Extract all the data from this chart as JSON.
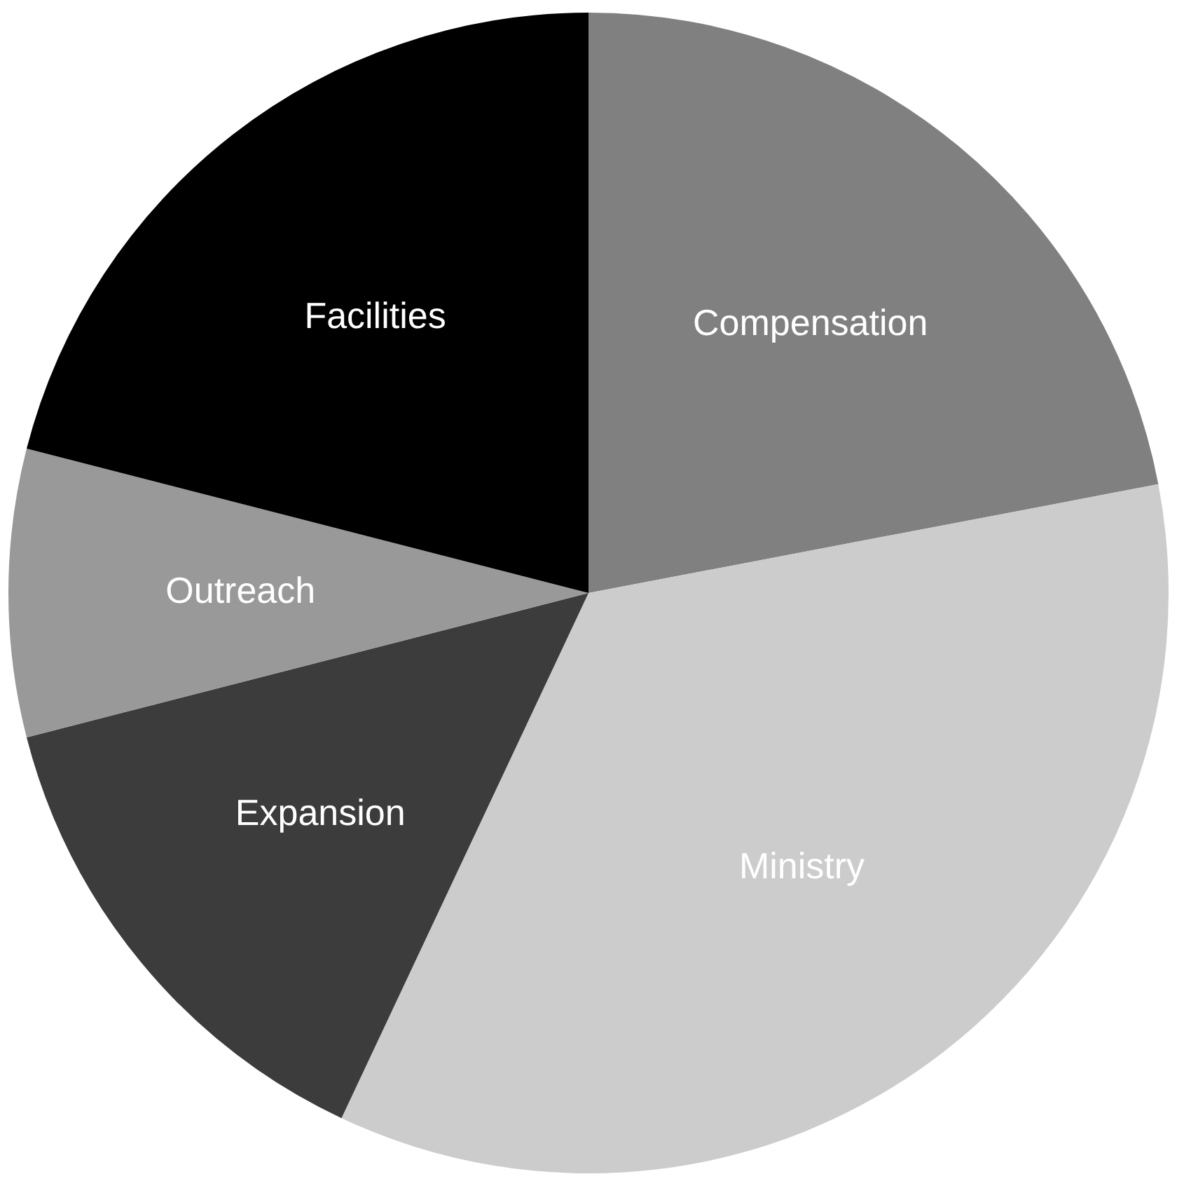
{
  "chart_data": {
    "type": "pie",
    "categories": [
      "Compensation",
      "Ministry",
      "Expansion",
      "Outreach",
      "Facilities"
    ],
    "values": [
      22,
      35,
      14,
      8,
      21
    ],
    "colors": [
      "#808080",
      "#cccccc",
      "#3c3c3c",
      "#999999",
      "#000000"
    ],
    "legend": false
  }
}
